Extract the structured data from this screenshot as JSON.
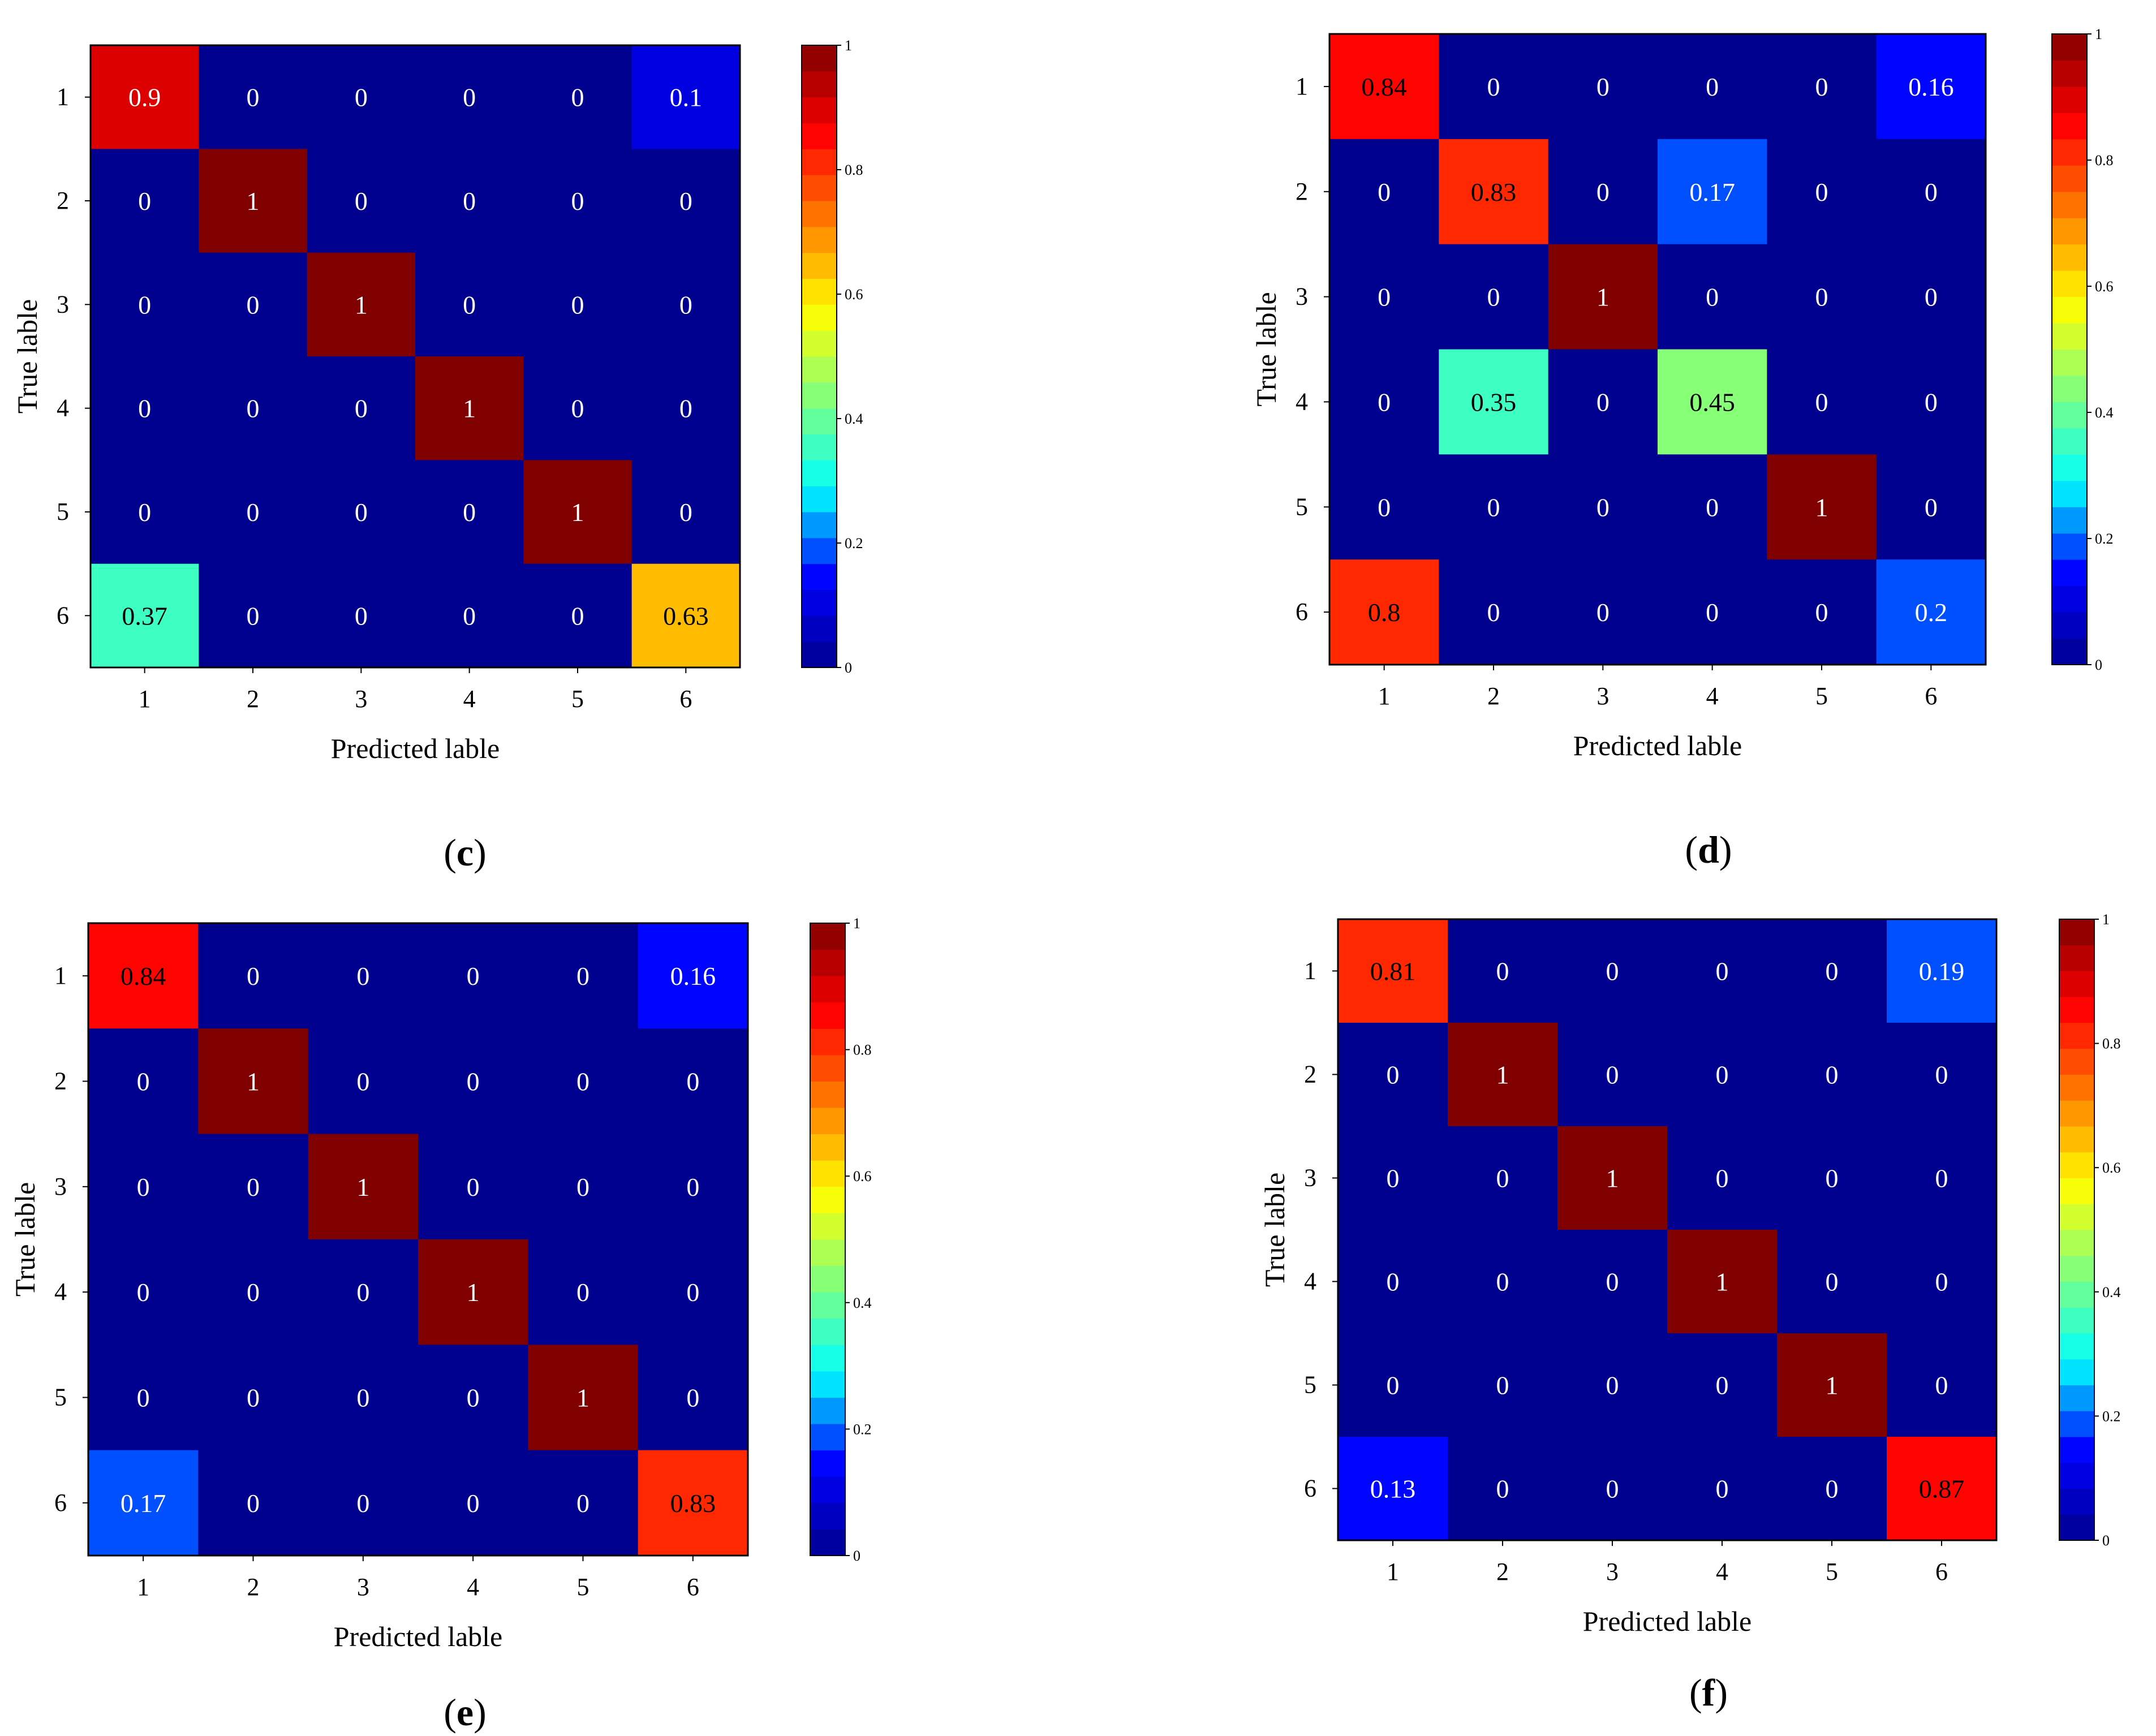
{
  "colors": {
    "colormap": [
      "#00008f",
      "#0000ff",
      "#00ffff",
      "#7fff7f",
      "#ffff00",
      "#ff7f00",
      "#ff0000",
      "#800000"
    ]
  },
  "chart_data": [
    {
      "id": "c",
      "type": "heatmap",
      "caption": "c",
      "xlabel": "Predicted lable",
      "ylabel": "True lable",
      "x_tick_labels": [
        "1",
        "2",
        "3",
        "4",
        "5",
        "6"
      ],
      "y_tick_labels": [
        "1",
        "2",
        "3",
        "4",
        "5",
        "6"
      ],
      "colorbar": {
        "range": [
          0,
          1
        ],
        "tick_labels": [
          "0",
          "0.2",
          "0.4",
          "0.6",
          "0.8",
          "1"
        ]
      },
      "matrix": [
        [
          0.9,
          0,
          0,
          0,
          0,
          0.1
        ],
        [
          0,
          1,
          0,
          0,
          0,
          0
        ],
        [
          0,
          0,
          1,
          0,
          0,
          0
        ],
        [
          0,
          0,
          0,
          1,
          0,
          0
        ],
        [
          0,
          0,
          0,
          0,
          1,
          0
        ],
        [
          0.37,
          0,
          0,
          0,
          0,
          0.63
        ]
      ],
      "cell_labels": [
        [
          "0.9",
          "0",
          "0",
          "0",
          "0",
          "0.1"
        ],
        [
          "0",
          "1",
          "0",
          "0",
          "0",
          "0"
        ],
        [
          "0",
          "0",
          "1",
          "0",
          "0",
          "0"
        ],
        [
          "0",
          "0",
          "0",
          "1",
          "0",
          "0"
        ],
        [
          "0",
          "0",
          "0",
          "0",
          "1",
          "0"
        ],
        [
          "0.37",
          "0",
          "0",
          "0",
          "0",
          "0.63"
        ]
      ]
    },
    {
      "id": "d",
      "type": "heatmap",
      "caption": "d",
      "xlabel": "Predicted lable",
      "ylabel": "True lable",
      "x_tick_labels": [
        "1",
        "2",
        "3",
        "4",
        "5",
        "6"
      ],
      "y_tick_labels": [
        "1",
        "2",
        "3",
        "4",
        "5",
        "6"
      ],
      "colorbar": {
        "range": [
          0,
          1
        ],
        "tick_labels": [
          "0",
          "0.2",
          "0.4",
          "0.6",
          "0.8",
          "1"
        ]
      },
      "matrix": [
        [
          0.84,
          0,
          0,
          0,
          0,
          0.16
        ],
        [
          0,
          0.83,
          0,
          0.17,
          0,
          0
        ],
        [
          0,
          0,
          1,
          0,
          0,
          0
        ],
        [
          0,
          0.35,
          0,
          0.45,
          0,
          0
        ],
        [
          0,
          0,
          0,
          0,
          1,
          0
        ],
        [
          0.8,
          0,
          0,
          0,
          0,
          0.2
        ]
      ],
      "cell_labels": [
        [
          "0.84",
          "0",
          "0",
          "0",
          "0",
          "0.16"
        ],
        [
          "0",
          "0.83",
          "0",
          "0.17",
          "0",
          "0"
        ],
        [
          "0",
          "0",
          "1",
          "0",
          "0",
          "0"
        ],
        [
          "0",
          "0.35",
          "0",
          "0.45",
          "0",
          "0"
        ],
        [
          "0",
          "0",
          "0",
          "0",
          "1",
          "0"
        ],
        [
          "0.8",
          "0",
          "0",
          "0",
          "0",
          "0.2"
        ]
      ]
    },
    {
      "id": "e",
      "type": "heatmap",
      "caption": "e",
      "xlabel": "Predicted lable",
      "ylabel": "True lable",
      "x_tick_labels": [
        "1",
        "2",
        "3",
        "4",
        "5",
        "6"
      ],
      "y_tick_labels": [
        "1",
        "2",
        "3",
        "4",
        "5",
        "6"
      ],
      "colorbar": {
        "range": [
          0,
          1
        ],
        "tick_labels": [
          "0",
          "0.2",
          "0.4",
          "0.6",
          "0.8",
          "1"
        ]
      },
      "matrix": [
        [
          0.84,
          0,
          0,
          0,
          0,
          0.16
        ],
        [
          0,
          1,
          0,
          0,
          0,
          0
        ],
        [
          0,
          0,
          1,
          0,
          0,
          0
        ],
        [
          0,
          0,
          0,
          1,
          0,
          0
        ],
        [
          0,
          0,
          0,
          0,
          1,
          0
        ],
        [
          0.17,
          0,
          0,
          0,
          0,
          0.83
        ]
      ],
      "cell_labels": [
        [
          "0.84",
          "0",
          "0",
          "0",
          "0",
          "0.16"
        ],
        [
          "0",
          "1",
          "0",
          "0",
          "0",
          "0"
        ],
        [
          "0",
          "0",
          "1",
          "0",
          "0",
          "0"
        ],
        [
          "0",
          "0",
          "0",
          "1",
          "0",
          "0"
        ],
        [
          "0",
          "0",
          "0",
          "0",
          "1",
          "0"
        ],
        [
          "0.17",
          "0",
          "0",
          "0",
          "0",
          "0.83"
        ]
      ]
    },
    {
      "id": "f",
      "type": "heatmap",
      "caption": "f",
      "xlabel": "Predicted lable",
      "ylabel": "True lable",
      "x_tick_labels": [
        "1",
        "2",
        "3",
        "4",
        "5",
        "6"
      ],
      "y_tick_labels": [
        "1",
        "2",
        "3",
        "4",
        "5",
        "6"
      ],
      "colorbar": {
        "range": [
          0,
          1
        ],
        "tick_labels": [
          "0",
          "0.2",
          "0.4",
          "0.6",
          "0.8",
          "1"
        ]
      },
      "matrix": [
        [
          0.81,
          0,
          0,
          0,
          0,
          0.19
        ],
        [
          0,
          1,
          0,
          0,
          0,
          0
        ],
        [
          0,
          0,
          1,
          0,
          0,
          0
        ],
        [
          0,
          0,
          0,
          1,
          0,
          0
        ],
        [
          0,
          0,
          0,
          0,
          1,
          0
        ],
        [
          0.13,
          0,
          0,
          0,
          0,
          0.87
        ]
      ],
      "cell_labels": [
        [
          "0.81",
          "0",
          "0",
          "0",
          "0",
          "0.19"
        ],
        [
          "0",
          "1",
          "0",
          "0",
          "0",
          "0"
        ],
        [
          "0",
          "0",
          "1",
          "0",
          "0",
          "0"
        ],
        [
          "0",
          "0",
          "0",
          "1",
          "0",
          "0"
        ],
        [
          "0",
          "0",
          "0",
          "0",
          "1",
          "0"
        ],
        [
          "0.13",
          "0",
          "0",
          "0",
          "0",
          "0.87"
        ]
      ]
    }
  ]
}
